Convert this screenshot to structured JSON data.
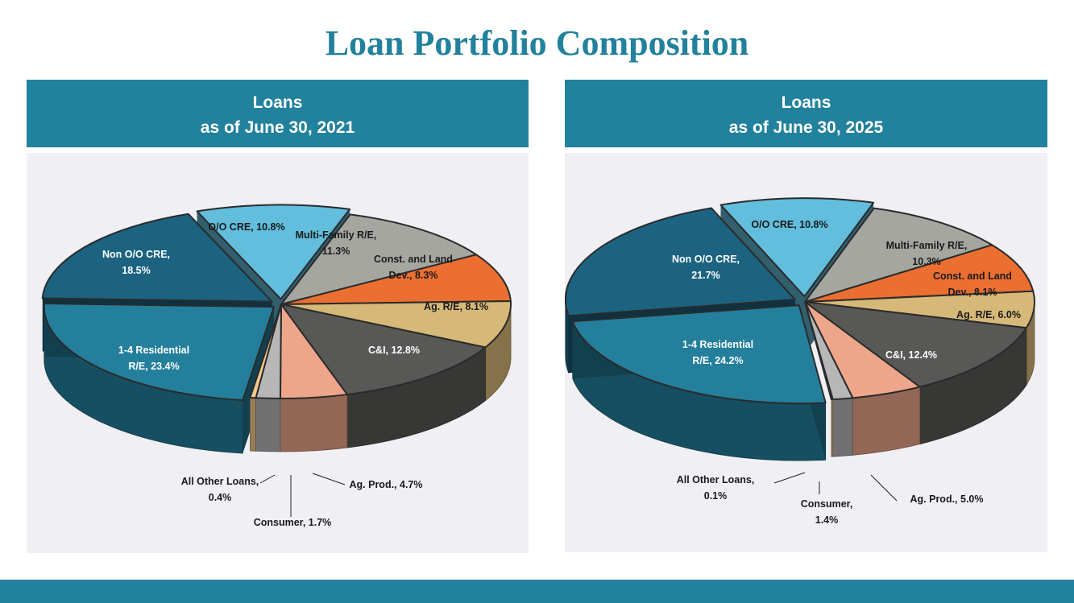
{
  "title": "Loan Portfolio Composition",
  "colors": {
    "accent": "#22819c",
    "panel_bg": "#efeff4",
    "slices": {
      "O/O CRE": "#62bedc",
      "Multi-Family R/E": "#a6a6a1",
      "Const. and Land Dev.": "#ec6f32",
      "Ag. R/E": "#d6b878",
      "C&I": "#585856",
      "Ag. Prod.": "#eda68a",
      "Consumer": "#b7b7b7",
      "All Other Loans": "#f3c98d",
      "1-4 Residential R/E": "#247f9d",
      "Non O/O CRE": "#1b6381"
    }
  },
  "chart_data": [
    {
      "type": "pie",
      "title_line1": "Loans",
      "title_line2": "as of June 30, 2021",
      "slices": [
        {
          "name": "O/O CRE",
          "value": 10.8,
          "label_lines": [
            "O/O CRE, 10.8%"
          ]
        },
        {
          "name": "Multi-Family R/E",
          "value": 11.3,
          "label_lines": [
            "Multi-Family R/E,",
            "11.3%"
          ]
        },
        {
          "name": "Const. and Land Dev.",
          "value": 8.3,
          "label_lines": [
            "Const. and Land",
            "Dev., 8.3%"
          ]
        },
        {
          "name": "Ag. R/E",
          "value": 8.1,
          "label_lines": [
            "Ag. R/E, 8.1%"
          ]
        },
        {
          "name": "C&I",
          "value": 12.8,
          "label_lines": [
            "C&I, 12.8%"
          ]
        },
        {
          "name": "Ag. Prod.",
          "value": 4.7,
          "label_lines": [
            "Ag. Prod., 4.7%"
          ]
        },
        {
          "name": "Consumer",
          "value": 1.7,
          "label_lines": [
            "Consumer, 1.7%"
          ]
        },
        {
          "name": "All Other Loans",
          "value": 0.4,
          "label_lines": [
            "All Other Loans,",
            "0.4%"
          ]
        },
        {
          "name": "1-4 Residential R/E",
          "value": 23.4,
          "label_lines": [
            "1-4 Residential",
            "R/E, 23.4%"
          ]
        },
        {
          "name": "Non O/O CRE",
          "value": 18.5,
          "label_lines": [
            "Non O/O CRE,",
            "18.5%"
          ]
        }
      ]
    },
    {
      "type": "pie",
      "title_line1": "Loans",
      "title_line2": "as of June 30, 2025",
      "slices": [
        {
          "name": "O/O CRE",
          "value": 10.8,
          "label_lines": [
            "O/O CRE, 10.8%"
          ]
        },
        {
          "name": "Multi-Family R/E",
          "value": 10.3,
          "label_lines": [
            "Multi-Family R/E,",
            "10.3%"
          ]
        },
        {
          "name": "Const. and Land Dev.",
          "value": 8.1,
          "label_lines": [
            "Const. and Land",
            "Dev., 8.1%"
          ]
        },
        {
          "name": "Ag. R/E",
          "value": 6.0,
          "label_lines": [
            "Ag. R/E, 6.0%"
          ]
        },
        {
          "name": "C&I",
          "value": 12.4,
          "label_lines": [
            "C&I, 12.4%"
          ]
        },
        {
          "name": "Ag. Prod.",
          "value": 5.0,
          "label_lines": [
            "Ag. Prod., 5.0%"
          ]
        },
        {
          "name": "Consumer",
          "value": 1.4,
          "label_lines": [
            "Consumer,",
            "1.4%"
          ]
        },
        {
          "name": "All Other Loans",
          "value": 0.1,
          "label_lines": [
            "All Other Loans,",
            "0.1%"
          ]
        },
        {
          "name": "1-4 Residential R/E",
          "value": 24.2,
          "label_lines": [
            "1-4 Residential",
            "R/E, 24.2%"
          ]
        },
        {
          "name": "Non O/O CRE",
          "value": 21.7,
          "label_lines": [
            "Non O/O CRE,",
            "21.7%"
          ]
        }
      ]
    }
  ]
}
